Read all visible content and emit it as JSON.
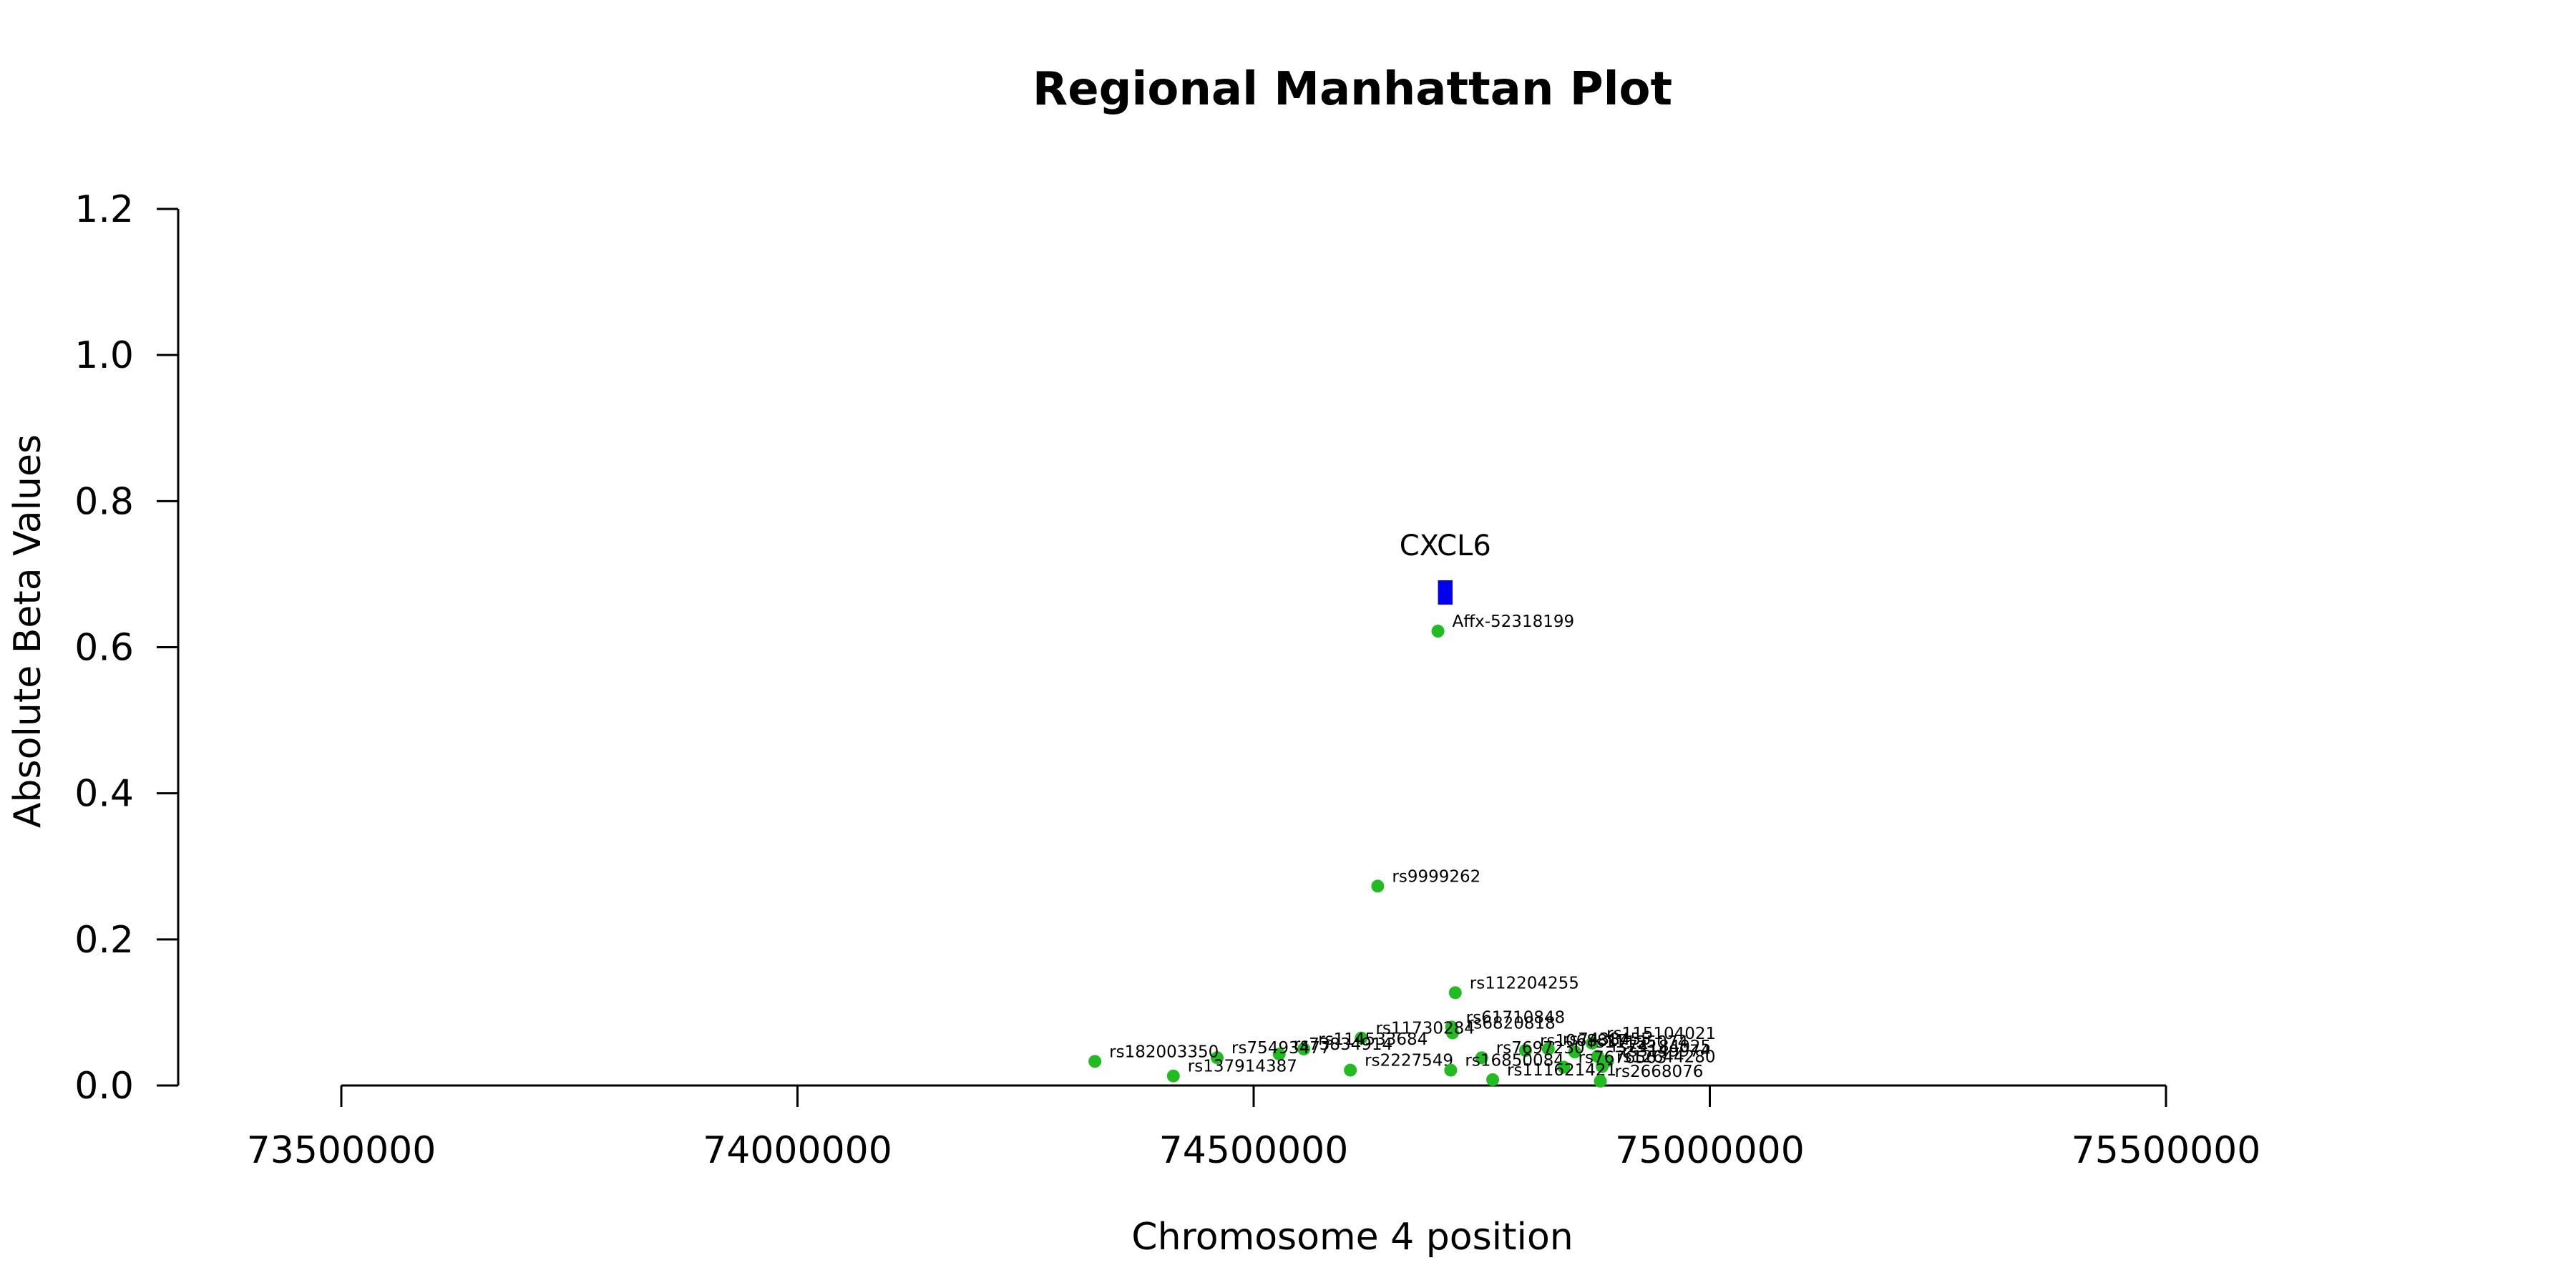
{
  "chart_data": {
    "type": "scatter",
    "title": "Regional Manhattan Plot",
    "xlabel": "Chromosome 4 position",
    "ylabel": "Absolute Beta Values",
    "xlim": [
      73500000,
      75500000
    ],
    "ylim": [
      0,
      1.2
    ],
    "x_ticks": [
      "73500000",
      "74000000",
      "74500000",
      "75000000",
      "75500000"
    ],
    "y_ticks": [
      "0.0",
      "0.2",
      "0.4",
      "0.6",
      "0.8",
      "1.0",
      "1.2"
    ],
    "grid": false,
    "legend": "none",
    "point_color": "#22bb22",
    "gene_color": "#0000ee",
    "gene": {
      "name": "CXCL6",
      "start": 74702000,
      "end": 74718000,
      "y": 0.675
    },
    "points": [
      {
        "label": "Affx-52318199",
        "x": 74702000,
        "y": 0.622
      },
      {
        "label": "rs9999262",
        "x": 74636000,
        "y": 0.273
      },
      {
        "label": "rs112204255",
        "x": 74721000,
        "y": 0.127
      },
      {
        "label": "rs61710848",
        "x": 74717000,
        "y": 0.08
      },
      {
        "label": "rs6820818",
        "x": 74718000,
        "y": 0.072
      },
      {
        "label": "rs11730284",
        "x": 74618000,
        "y": 0.065
      },
      {
        "label": "rs115104021",
        "x": 74871000,
        "y": 0.058
      },
      {
        "label": "rs114533684",
        "x": 74555000,
        "y": 0.05
      },
      {
        "label": "rs73834914",
        "x": 74528000,
        "y": 0.043
      },
      {
        "label": "rs75493477",
        "x": 74460000,
        "y": 0.038
      },
      {
        "label": "rs182003350",
        "x": 74326000,
        "y": 0.033
      },
      {
        "label": "rs1068817",
        "x": 74798000,
        "y": 0.048
      },
      {
        "label": "rs7438455",
        "x": 74823000,
        "y": 0.05
      },
      {
        "label": "rs11135074",
        "x": 74852000,
        "y": 0.046
      },
      {
        "label": "rs74184025",
        "x": 74877000,
        "y": 0.04
      },
      {
        "label": "rs3149974",
        "x": 74888000,
        "y": 0.034
      },
      {
        "label": "rs7697230",
        "x": 74750000,
        "y": 0.038
      },
      {
        "label": "rs12644280",
        "x": 74882000,
        "y": 0.026
      },
      {
        "label": "rs2227549",
        "x": 74606000,
        "y": 0.021
      },
      {
        "label": "rs16850084",
        "x": 74716000,
        "y": 0.021
      },
      {
        "label": "rs7676563",
        "x": 74840000,
        "y": 0.025
      },
      {
        "label": "rs137914387",
        "x": 74412000,
        "y": 0.013
      },
      {
        "label": "rs111621421",
        "x": 74762000,
        "y": 0.008
      },
      {
        "label": "rs2668076",
        "x": 74880000,
        "y": 0.006
      }
    ]
  }
}
